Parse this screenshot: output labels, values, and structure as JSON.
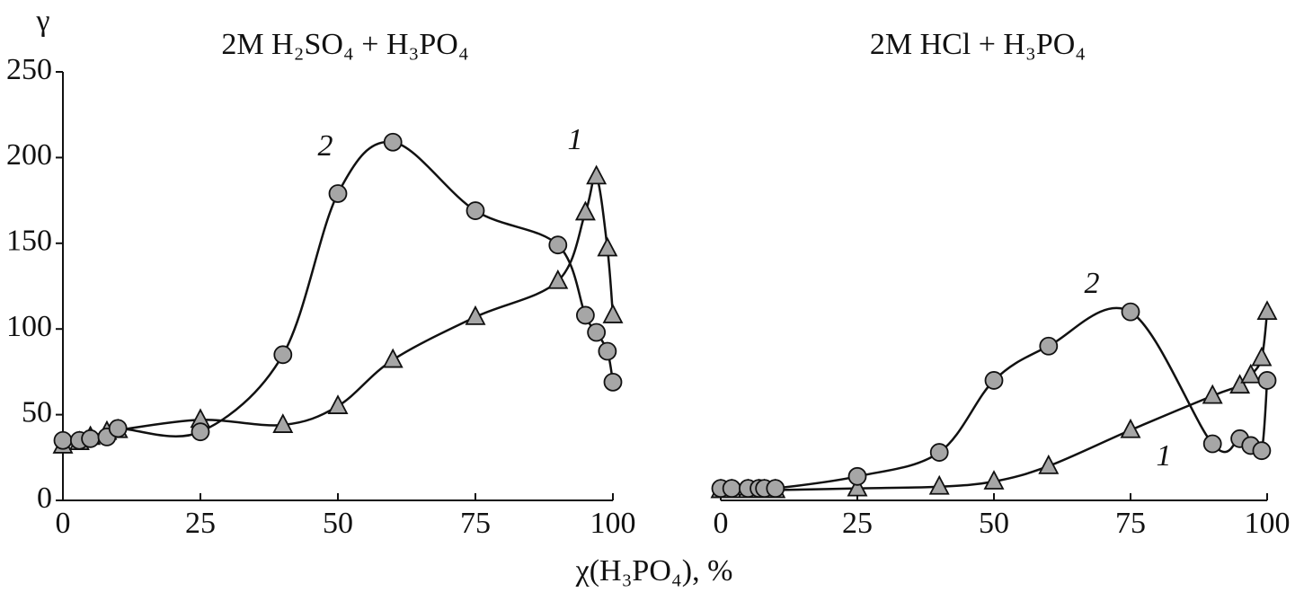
{
  "figure": {
    "y_label": "γ",
    "x_label": "χ(H₃PO₄), %"
  },
  "chart_data": [
    {
      "type": "line",
      "title": "2M H₂SO₄ + H₃PO₄",
      "xlim": [
        0,
        100
      ],
      "xticks": [
        0,
        25,
        50,
        75,
        100
      ],
      "ylim": [
        0,
        250
      ],
      "yticks": [
        0,
        50,
        100,
        150,
        200,
        250
      ],
      "series": [
        {
          "name": "1",
          "marker": "triangle",
          "color": "#a6a6a6",
          "x": [
            0,
            3,
            5,
            8,
            10,
            25,
            40,
            50,
            60,
            75,
            90,
            95,
            97,
            99,
            100
          ],
          "values": [
            32,
            34,
            37,
            40,
            41,
            47,
            44,
            55,
            82,
            107,
            128,
            168,
            189,
            147,
            108
          ]
        },
        {
          "name": "2",
          "marker": "circle",
          "color": "#a6a6a6",
          "x": [
            0,
            3,
            5,
            8,
            10,
            25,
            40,
            50,
            60,
            75,
            90,
            95,
            97,
            99,
            100
          ],
          "values": [
            35,
            35,
            36,
            37,
            42,
            40,
            85,
            179,
            209,
            169,
            149,
            108,
            98,
            87,
            69
          ]
        }
      ]
    },
    {
      "type": "line",
      "title": "2M HCl + H₃PO₄",
      "xlim": [
        0,
        100
      ],
      "xticks": [
        0,
        25,
        50,
        75,
        100
      ],
      "ylim": [
        0,
        250
      ],
      "series": [
        {
          "name": "1",
          "marker": "triangle",
          "color": "#a6a6a6",
          "x": [
            0,
            2,
            5,
            7,
            8,
            10,
            25,
            40,
            50,
            60,
            75,
            90,
            95,
            97,
            99,
            100
          ],
          "values": [
            6,
            6,
            6,
            6,
            6,
            6,
            7,
            8,
            11,
            20,
            41,
            61,
            67,
            73,
            83,
            110
          ]
        },
        {
          "name": "2",
          "marker": "circle",
          "color": "#a6a6a6",
          "x": [
            0,
            2,
            5,
            7,
            8,
            10,
            25,
            40,
            50,
            60,
            75,
            90,
            95,
            97,
            99,
            100
          ],
          "values": [
            7,
            7,
            7,
            7,
            7,
            7,
            14,
            28,
            70,
            90,
            110,
            33,
            36,
            32,
            29,
            70
          ]
        }
      ]
    }
  ]
}
